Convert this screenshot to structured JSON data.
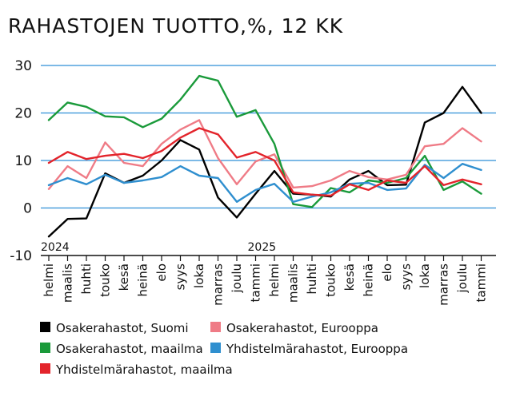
{
  "title": "RAHASTOJEN TUOTTO,%, 12 KK",
  "chart_data": {
    "type": "line",
    "title": "RAHASTOJEN TUOTTO,%, 12 KK",
    "ylim": [
      -10,
      30
    ],
    "yticks": [
      -10,
      0,
      10,
      20,
      30
    ],
    "grid": true,
    "legend_placement": "bottom",
    "categories": [
      "helmi",
      "maalis",
      "huhti",
      "touko",
      "kesä",
      "heinä",
      "elo",
      "syys",
      "loka",
      "marras",
      "joulu",
      "tammi",
      "helmi",
      "maalis",
      "huhti",
      "touko",
      "kesä",
      "heinä",
      "elo",
      "syys",
      "loka",
      "marras",
      "joulu",
      "tammi"
    ],
    "year_labels": [
      {
        "label": "2024",
        "index": 0
      },
      {
        "label": "2025",
        "index": 11
      }
    ],
    "series": [
      {
        "name": "Osakerahastot, Suomi",
        "color": "#000000",
        "values": [
          -6,
          -2.3,
          -2.2,
          7.3,
          5.3,
          6.8,
          10,
          14.3,
          12.3,
          2.2,
          -2,
          3,
          7.8,
          3,
          2.8,
          2.4,
          6,
          7.8,
          4.8,
          4.9,
          18,
          20,
          25.5,
          20
        ]
      },
      {
        "name": "Osakerahastot, Eurooppa",
        "color": "#ef7b86",
        "values": [
          4,
          8.8,
          6.3,
          13.8,
          9.5,
          8.8,
          13.5,
          16.5,
          18.5,
          10.5,
          5,
          9.8,
          11.3,
          4.3,
          4.6,
          5.8,
          7.8,
          6.5,
          6,
          7,
          13,
          13.5,
          16.8,
          14
        ]
      },
      {
        "name": "Osakerahastot, maailma",
        "color": "#1a9a3a",
        "values": [
          18.5,
          22.2,
          21.3,
          19.3,
          19.1,
          17,
          18.8,
          22.8,
          27.8,
          26.8,
          19.2,
          20.6,
          13.5,
          0.8,
          0.2,
          4.2,
          3.3,
          5.8,
          5.3,
          6.3,
          11,
          3.8,
          5.6,
          3
        ]
      },
      {
        "name": "Yhdistelmärahastot, Eurooppa",
        "color": "#2f8fcf",
        "values": [
          4.8,
          6.3,
          5,
          7,
          5.3,
          5.8,
          6.5,
          8.8,
          6.8,
          6.3,
          1.3,
          3.8,
          5.1,
          1.3,
          2.4,
          3.3,
          5.1,
          5.3,
          3.8,
          4.1,
          9.1,
          6.3,
          9.3,
          8
        ]
      },
      {
        "name": "Yhdistelmärahastot, maailma",
        "color": "#e3242b",
        "values": [
          9.5,
          11.8,
          10.3,
          11,
          11.4,
          10.5,
          12,
          14.8,
          16.8,
          15.5,
          10.6,
          11.8,
          10,
          3.3,
          2.8,
          2.6,
          5,
          3.8,
          5.8,
          5.3,
          8.8,
          4.8,
          6,
          5
        ]
      }
    ]
  }
}
